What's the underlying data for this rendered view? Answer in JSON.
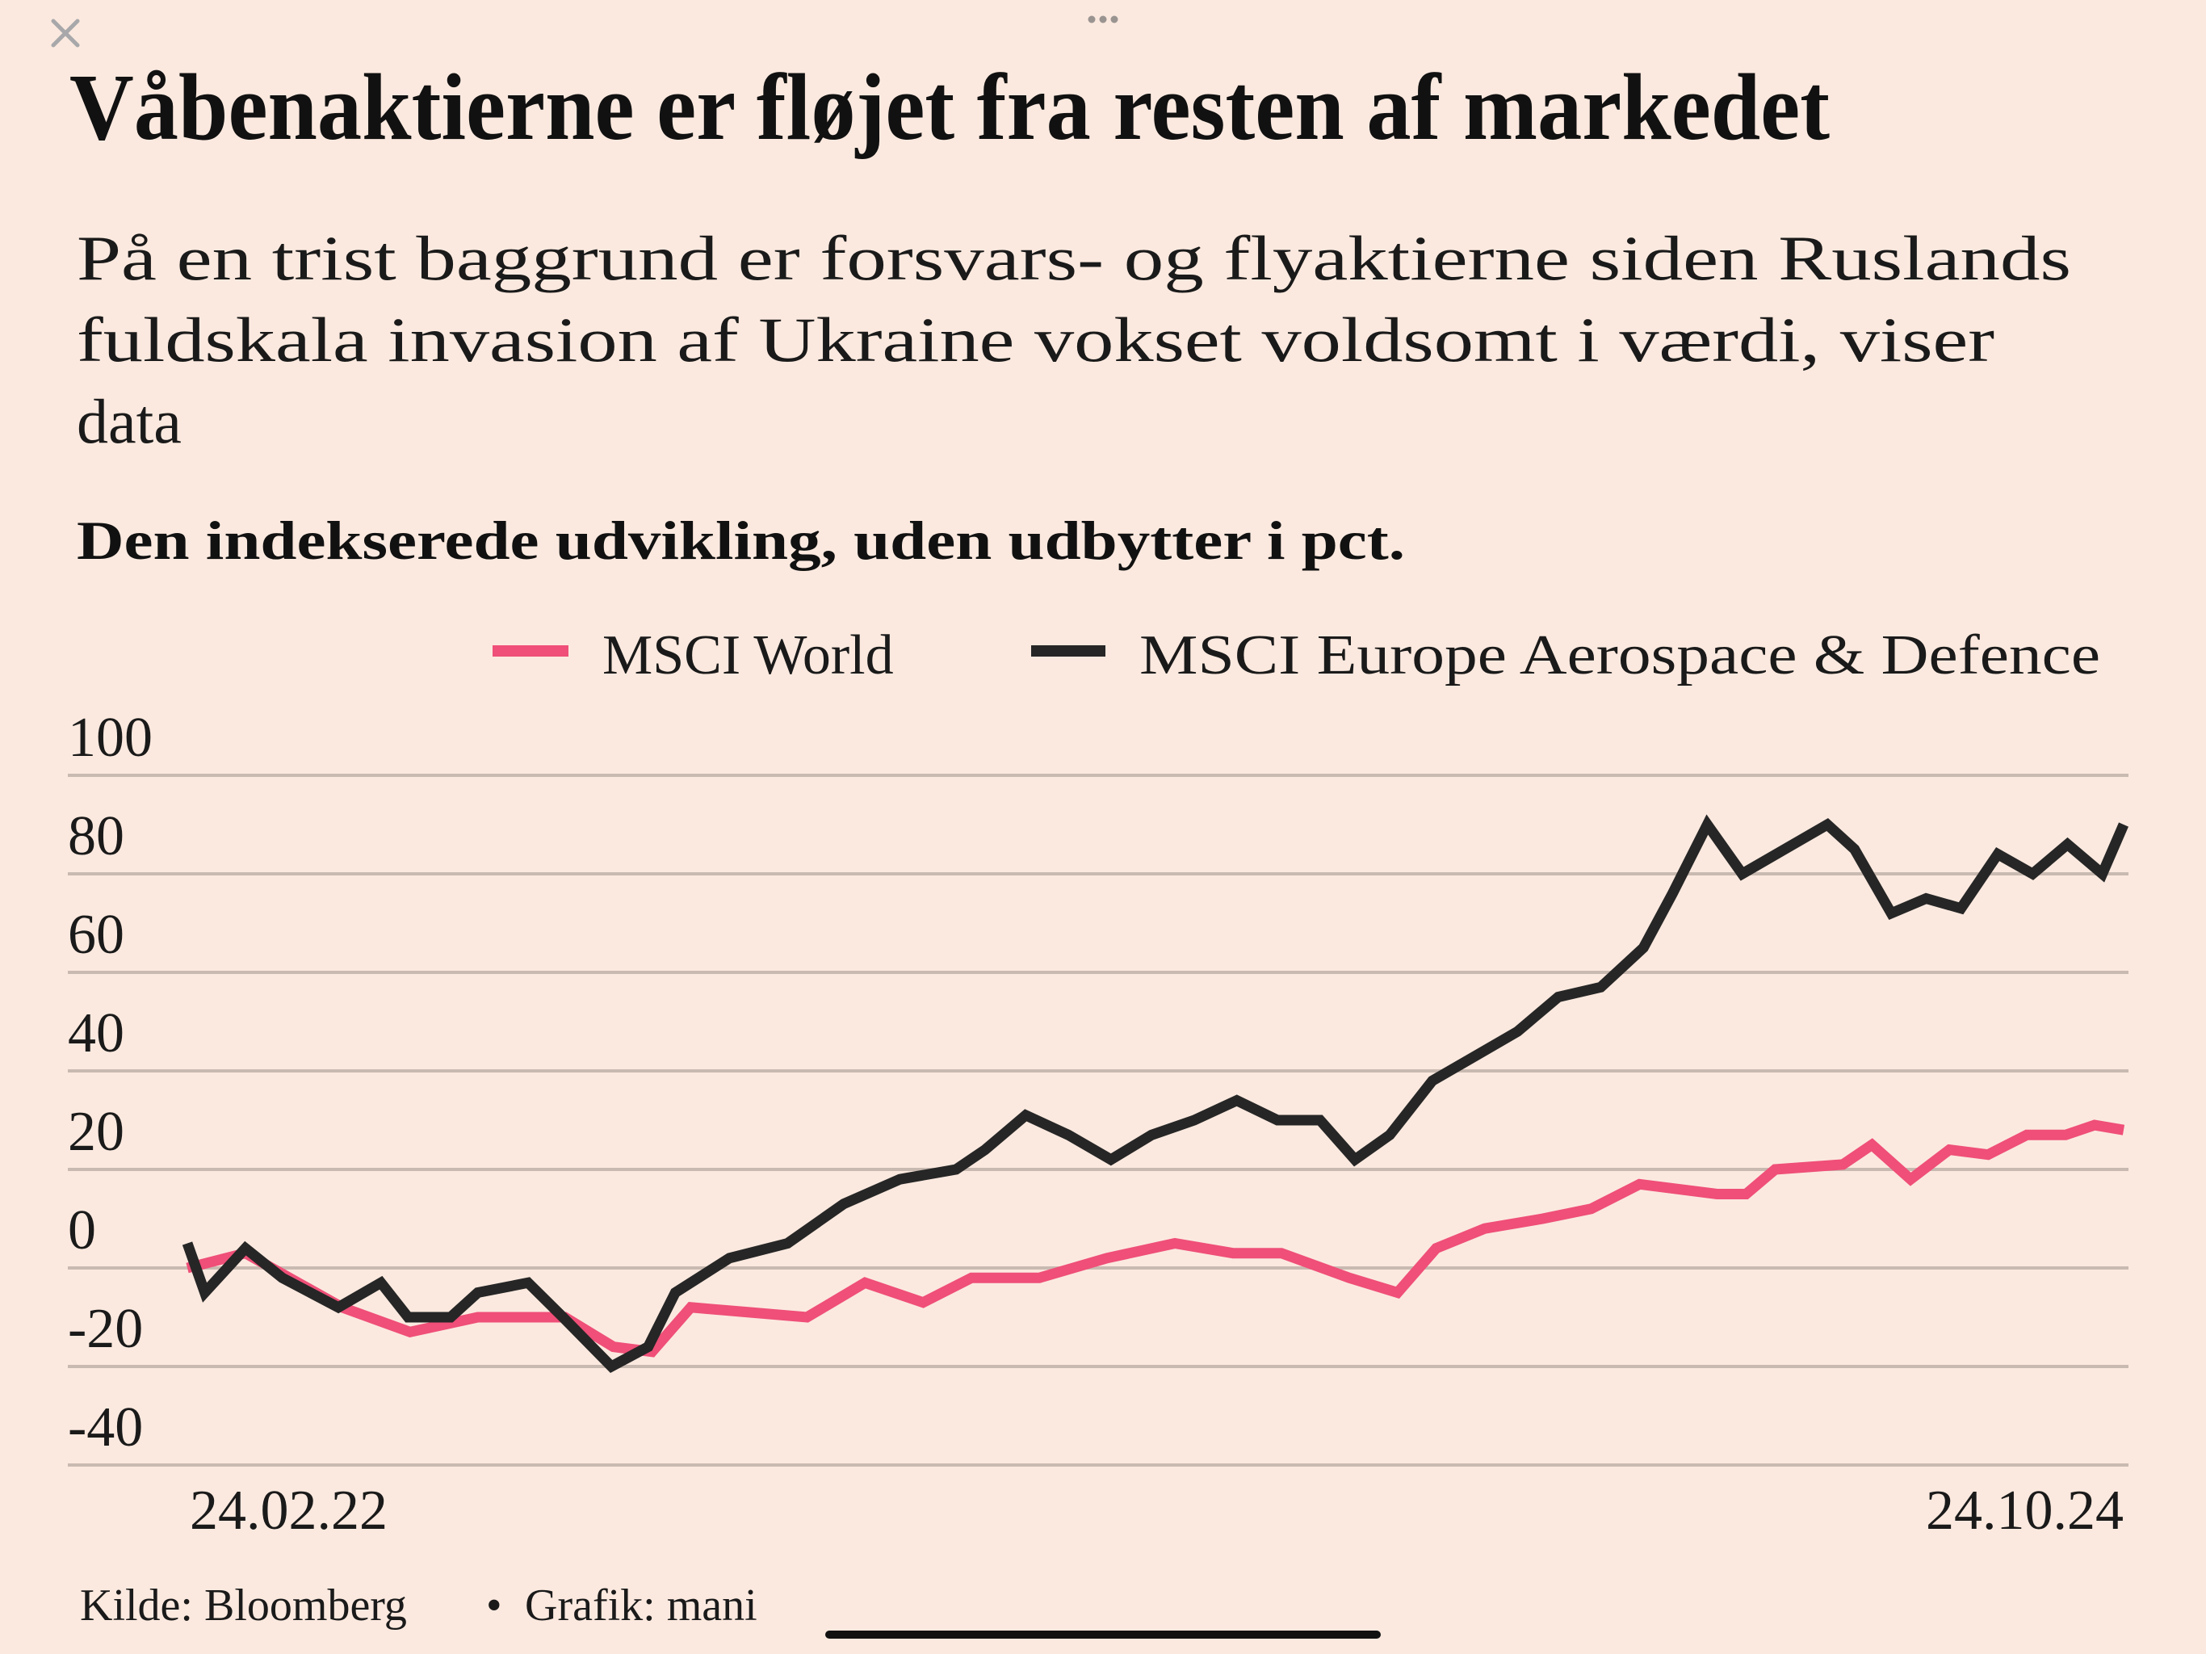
{
  "window": {
    "close_icon": "close-icon",
    "more_icon": "more-dots-icon"
  },
  "title": "Våbenaktierne er fløjet fra resten af markedet",
  "subtitle_lines": [
    "På en trist baggrund er forsvars- og flyaktierne siden Ruslands",
    "fuldskala invasion af Ukraine vokset voldsomt i værdi, viser",
    "data"
  ],
  "footer": {
    "source": "Kilde: Bloomberg",
    "separator": "•",
    "credit": "Grafik: mani"
  },
  "chart_data": {
    "type": "line",
    "title": "Den indekserede udvikling, uden udbytter i pct.",
    "xlabel": "",
    "ylabel": "",
    "x_tick_labels": [
      "24.02.22",
      "24.10.24"
    ],
    "x_range": [
      "2022-02-24",
      "2024-10-24"
    ],
    "y_ticks": [
      100,
      80,
      60,
      40,
      20,
      0,
      -20,
      -40
    ],
    "y_tick_labels": [
      "100",
      "80",
      "60",
      "40",
      "20",
      "0",
      "-20",
      "-40"
    ],
    "ylim": [
      -40,
      100
    ],
    "grid": true,
    "legend_placement": "top",
    "series": [
      {
        "name": "MSCI World",
        "color": "#ef4f78",
        "x_fraction": [
          0,
          0.03,
          0.08,
          0.115,
          0.15,
          0.195,
          0.22,
          0.24,
          0.26,
          0.29,
          0.32,
          0.35,
          0.38,
          0.405,
          0.44,
          0.475,
          0.51,
          0.54,
          0.565,
          0.6,
          0.625,
          0.645,
          0.67,
          0.7,
          0.725,
          0.75,
          0.79,
          0.805,
          0.82,
          0.855,
          0.87,
          0.89,
          0.91,
          0.93,
          0.95,
          0.97,
          0.985,
          1.0
        ],
        "values": [
          0,
          3,
          -8,
          -13,
          -10,
          -10,
          -16,
          -17,
          -8,
          -9,
          -10,
          -3,
          -7,
          -2,
          -2,
          2,
          5,
          3,
          3,
          -2,
          -5,
          4,
          8,
          10,
          12,
          17,
          15,
          15,
          20,
          21,
          25,
          18,
          24,
          23,
          27,
          27,
          29,
          28
        ]
      },
      {
        "name": "MSCI Europe Aerospace & Defence",
        "color": "#262626",
        "x_fraction": [
          0,
          0.009,
          0.03,
          0.049,
          0.078,
          0.1,
          0.114,
          0.136,
          0.15,
          0.176,
          0.194,
          0.219,
          0.238,
          0.252,
          0.28,
          0.31,
          0.339,
          0.368,
          0.397,
          0.412,
          0.433,
          0.455,
          0.477,
          0.498,
          0.52,
          0.542,
          0.563,
          0.585,
          0.603,
          0.621,
          0.643,
          0.665,
          0.687,
          0.708,
          0.73,
          0.752,
          0.767,
          0.785,
          0.803,
          0.825,
          0.847,
          0.861,
          0.88,
          0.898,
          0.916,
          0.935,
          0.953,
          0.971,
          0.989,
          1.0
        ],
        "values": [
          5,
          -5,
          4,
          -2,
          -8,
          -3,
          -10,
          -10,
          -5,
          -3,
          -10,
          -20,
          -16,
          -5,
          2,
          5,
          13,
          18,
          20,
          24,
          31,
          27,
          22,
          27,
          30,
          34,
          30,
          30,
          22,
          27,
          38,
          43,
          48,
          55,
          57,
          65,
          76,
          90,
          80,
          85,
          90,
          85,
          72,
          75,
          73,
          84,
          80,
          86,
          80,
          90
        ]
      }
    ]
  }
}
